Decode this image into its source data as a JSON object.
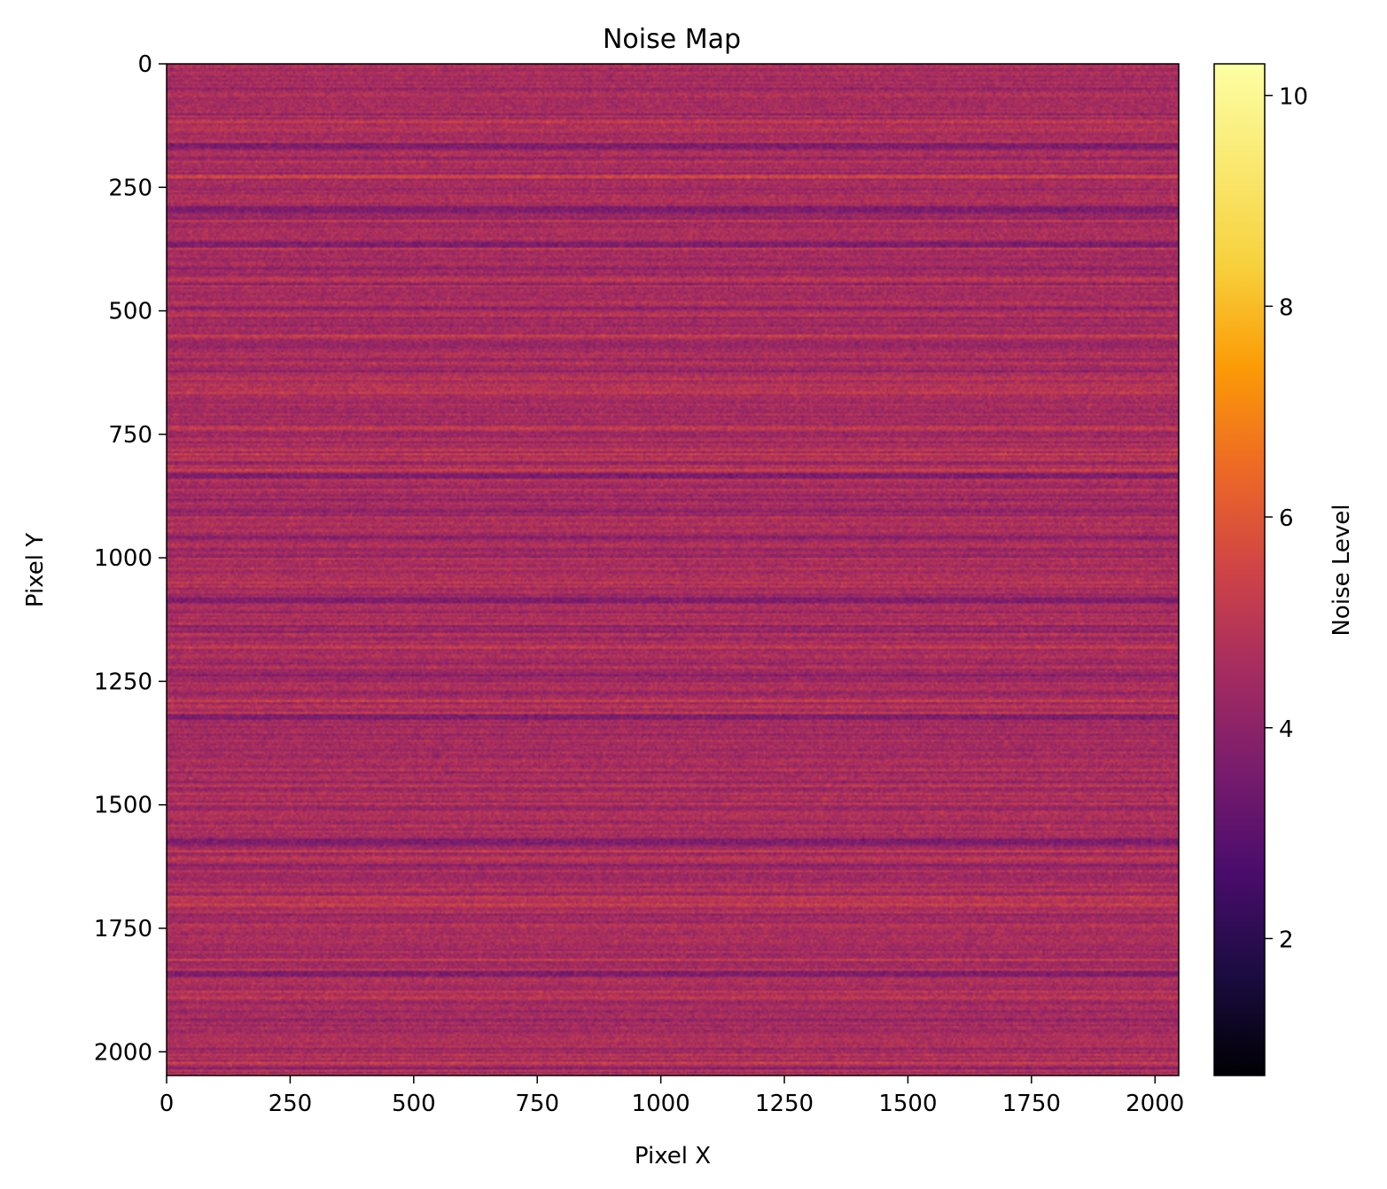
{
  "chart_data": {
    "type": "heatmap",
    "title": "Noise Map",
    "xlabel": "Pixel X",
    "ylabel": "Pixel Y",
    "xlim": [
      0,
      2048
    ],
    "ylim": [
      2048,
      0
    ],
    "y_axis_inverted": true,
    "x_ticks": [
      0,
      250,
      500,
      750,
      1000,
      1250,
      1500,
      1750,
      2000
    ],
    "x_tick_labels": [
      "0",
      "250",
      "500",
      "750",
      "1000",
      "1250",
      "1500",
      "1750",
      "2000"
    ],
    "y_ticks": [
      0,
      250,
      500,
      750,
      1000,
      1250,
      1500,
      1750,
      2000
    ],
    "y_tick_labels": [
      "0",
      "250",
      "500",
      "750",
      "1000",
      "1250",
      "1500",
      "1750",
      "2000"
    ],
    "colormap": "inferno",
    "colorbar": {
      "label": "Noise Level",
      "range": [
        0.7,
        10.3
      ],
      "ticks": [
        2,
        4,
        6,
        8,
        10
      ],
      "tick_labels": [
        "2",
        "4",
        "6",
        "8",
        "10"
      ]
    },
    "noise": {
      "base_level": 4.6,
      "row_spread": 0.45,
      "pixel_spread": 0.35,
      "dark_rows": [
        165,
        290,
        365,
        830,
        1085,
        1320,
        1570,
        1840
      ],
      "dark_row_level": 3.7,
      "bright_rows": [
        548,
        787,
        1288,
        1590,
        1700,
        1810,
        2018
      ],
      "bright_row_level": 5.4
    }
  }
}
